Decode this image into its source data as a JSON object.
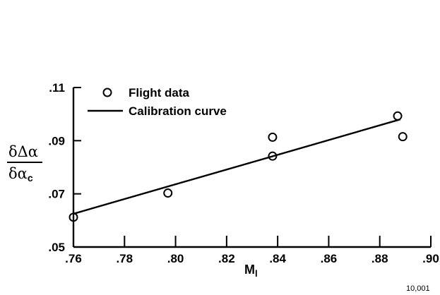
{
  "chart_data": {
    "type": "scatter",
    "title": "",
    "xlabel": {
      "main": "M",
      "sub": "l"
    },
    "ylabel": {
      "numerator": "δΔα",
      "denominator": "δα",
      "denominator_sub": "c"
    },
    "xlim": [
      0.76,
      0.9
    ],
    "ylim": [
      0.05,
      0.11
    ],
    "x_ticks": [
      0.76,
      0.78,
      0.8,
      0.82,
      0.84,
      0.86,
      0.88,
      0.9
    ],
    "x_tick_labels": [
      ".76",
      ".78",
      ".80",
      ".82",
      ".84",
      ".86",
      ".88",
      ".90"
    ],
    "y_ticks": [
      0.05,
      0.07,
      0.09,
      0.11
    ],
    "y_tick_labels": [
      ".05",
      ".07",
      ".09",
      ".11"
    ],
    "grid": false,
    "legend_position": "top-left",
    "series": [
      {
        "name": "Flight data",
        "kind": "scatter",
        "marker": "open-circle",
        "points": [
          {
            "x": 0.76,
            "y": 0.0612
          },
          {
            "x": 0.797,
            "y": 0.0703
          },
          {
            "x": 0.838,
            "y": 0.0913
          },
          {
            "x": 0.838,
            "y": 0.0842
          },
          {
            "x": 0.887,
            "y": 0.0993
          },
          {
            "x": 0.889,
            "y": 0.0915
          }
        ]
      },
      {
        "name": "Calibration curve",
        "kind": "line",
        "points": [
          {
            "x": 0.76,
            "y": 0.0625
          },
          {
            "x": 0.888,
            "y": 0.098
          }
        ]
      }
    ]
  },
  "figure_id": "10,001"
}
